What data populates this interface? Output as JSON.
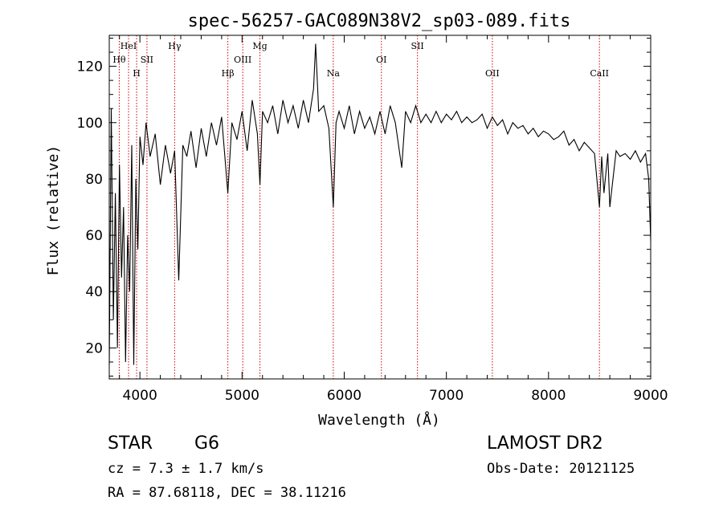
{
  "chart_data": {
    "type": "line",
    "title": "spec-56257-GAC089N38V2_sp03-089.fits",
    "xlabel": "Wavelength (Å)",
    "ylabel": "Flux (relative)",
    "xlim": [
      3700,
      9000
    ],
    "ylim": [
      9,
      131
    ],
    "x_ticks": [
      4000,
      5000,
      6000,
      7000,
      8000,
      9000
    ],
    "y_ticks": [
      20,
      40,
      60,
      80,
      100,
      120
    ],
    "grid": false,
    "line_color": "#000000",
    "marker_color": "#cc0000",
    "series": [
      {
        "x": [
          3700,
          3720,
          3740,
          3760,
          3780,
          3800,
          3820,
          3840,
          3860,
          3880,
          3900,
          3920,
          3940,
          3960,
          3980,
          4000,
          4030,
          4060,
          4100,
          4150,
          4200,
          4250,
          4300,
          4340,
          4380,
          4420,
          4460,
          4500,
          4550,
          4600,
          4650,
          4700,
          4750,
          4800,
          4861,
          4900,
          4950,
          5000,
          5050,
          5100,
          5150,
          5175,
          5200,
          5250,
          5300,
          5350,
          5400,
          5450,
          5500,
          5550,
          5600,
          5650,
          5700,
          5720,
          5750,
          5800,
          5850,
          5893,
          5920,
          5950,
          6000,
          6050,
          6100,
          6150,
          6200,
          6250,
          6300,
          6350,
          6400,
          6450,
          6500,
          6563,
          6600,
          6650,
          6700,
          6750,
          6800,
          6850,
          6900,
          6950,
          7000,
          7050,
          7100,
          7150,
          7200,
          7250,
          7300,
          7350,
          7400,
          7450,
          7500,
          7550,
          7600,
          7650,
          7700,
          7750,
          7800,
          7850,
          7900,
          7950,
          8000,
          8050,
          8100,
          8150,
          8200,
          8250,
          8300,
          8350,
          8400,
          8450,
          8498,
          8520,
          8542,
          8580,
          8600,
          8662,
          8700,
          8750,
          8800,
          8850,
          8900,
          8950,
          8980,
          9000
        ],
        "y": [
          14,
          105,
          30,
          75,
          20,
          85,
          45,
          70,
          15,
          60,
          40,
          92,
          14,
          80,
          55,
          95,
          85,
          100,
          88,
          96,
          78,
          92,
          82,
          90,
          44,
          92,
          88,
          97,
          84,
          98,
          88,
          100,
          92,
          102,
          75,
          100,
          94,
          104,
          90,
          108,
          96,
          78,
          104,
          100,
          106,
          96,
          108,
          100,
          106,
          98,
          108,
          100,
          112,
          128,
          104,
          106,
          98,
          70,
          100,
          104,
          98,
          106,
          96,
          104,
          98,
          102,
          96,
          104,
          96,
          106,
          100,
          84,
          104,
          100,
          106,
          100,
          103,
          100,
          104,
          100,
          103,
          101,
          104,
          100,
          102,
          100,
          101,
          103,
          98,
          102,
          99,
          101,
          96,
          100,
          98,
          99,
          96,
          98,
          95,
          97,
          96,
          94,
          95,
          97,
          92,
          94,
          90,
          93,
          91,
          89,
          70,
          88,
          75,
          89,
          70,
          90,
          88,
          89,
          87,
          90,
          86,
          89,
          80,
          58
        ]
      }
    ],
    "line_markers": [
      {
        "label": "Hθ",
        "x": 3798,
        "row": 2
      },
      {
        "label": "HeI",
        "x": 3889,
        "row": 1
      },
      {
        "label": "H",
        "x": 3968,
        "row": 3
      },
      {
        "label": "SII",
        "x": 4069,
        "row": 2
      },
      {
        "label": "Hγ",
        "x": 4340,
        "row": 1
      },
      {
        "label": "Hβ",
        "x": 4861,
        "row": 3
      },
      {
        "label": "OIII",
        "x": 5007,
        "row": 2
      },
      {
        "label": "Mg",
        "x": 5175,
        "row": 1
      },
      {
        "label": "Na",
        "x": 5893,
        "row": 3
      },
      {
        "label": "OI",
        "x": 6364,
        "row": 2
      },
      {
        "label": "SII",
        "x": 6717,
        "row": 1
      },
      {
        "label": "OII",
        "x": 7450,
        "row": 3
      },
      {
        "label": "CaII",
        "x": 8498,
        "row": 3
      }
    ]
  },
  "info": {
    "object_class": "STAR",
    "subclass": "G6",
    "survey": "LAMOST DR2",
    "cz": "cz = 7.3 ± 1.7 km/s",
    "obs_date": "Obs-Date: 20121125",
    "coords": "RA =  87.68118, DEC =  38.11216"
  }
}
